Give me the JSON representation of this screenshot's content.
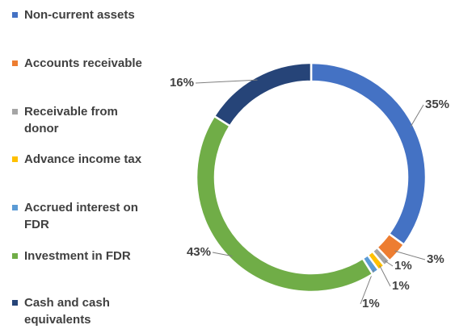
{
  "chart_data": {
    "type": "donut",
    "categories": [
      "Non-current assets",
      "Accounts receivable",
      "Receivable from donor",
      "Advance income tax",
      "Accrued interest on FDR",
      "Investment in FDR",
      "Cash and cash equivalents"
    ],
    "values": [
      35,
      3,
      1,
      1,
      1,
      43,
      16
    ],
    "value_labels": [
      "35%",
      "3%",
      "1%",
      "1%",
      "1%",
      "43%",
      "16%"
    ],
    "colors": [
      "#4472c4",
      "#ed7d31",
      "#a5a5a5",
      "#ffc000",
      "#5b9bd5",
      "#70ad47",
      "#264478"
    ],
    "legend": "left"
  }
}
